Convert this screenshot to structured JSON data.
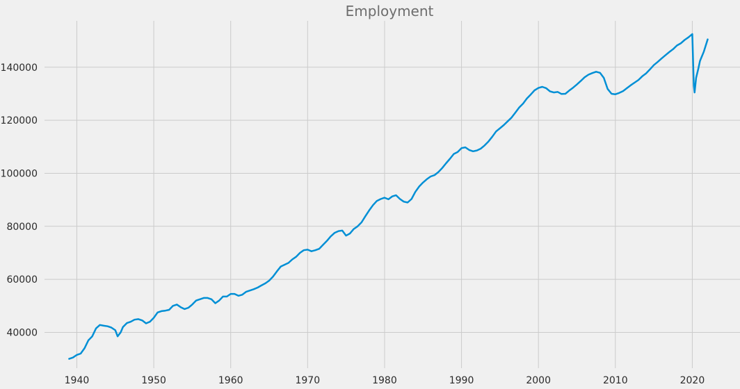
{
  "chart_data": {
    "type": "line",
    "title": "Employment",
    "xlabel": "",
    "ylabel": "",
    "xlim": [
      1935.8,
      2026.2
    ],
    "ylim": [
      26500,
      157500
    ],
    "grid": true,
    "legend": "none",
    "x_ticks": [
      1940,
      1950,
      1960,
      1970,
      1980,
      1990,
      2000,
      2010,
      2020
    ],
    "y_ticks": [
      40000,
      60000,
      80000,
      100000,
      120000,
      140000
    ],
    "colors": {
      "background": "#f0f0f0",
      "grid": "#cbcbcb",
      "line": "#008fd5",
      "title": "#6d6d6d",
      "tick": "#2a2a2a"
    },
    "series": [
      {
        "x": [
          1939.0,
          1939.5,
          1940.0,
          1940.5,
          1941.0,
          1941.5,
          1942.0,
          1942.5,
          1943.0,
          1943.5,
          1944.0,
          1944.5,
          1945.0,
          1945.3,
          1945.7,
          1946.0,
          1946.5,
          1947.0,
          1947.5,
          1948.0,
          1948.5,
          1949.0,
          1949.5,
          1950.0,
          1950.5,
          1951.0,
          1951.5,
          1952.0,
          1952.5,
          1953.0,
          1953.5,
          1954.0,
          1954.5,
          1955.0,
          1955.5,
          1956.0,
          1956.5,
          1957.0,
          1957.5,
          1958.0,
          1958.5,
          1959.0,
          1959.5,
          1960.0,
          1960.5,
          1961.0,
          1961.5,
          1962.0,
          1962.5,
          1963.0,
          1963.5,
          1964.0,
          1964.5,
          1965.0,
          1965.5,
          1966.0,
          1966.5,
          1967.0,
          1967.5,
          1968.0,
          1968.5,
          1969.0,
          1969.5,
          1970.0,
          1970.5,
          1971.0,
          1971.5,
          1972.0,
          1972.5,
          1973.0,
          1973.5,
          1974.0,
          1974.5,
          1975.0,
          1975.5,
          1976.0,
          1976.5,
          1977.0,
          1977.5,
          1978.0,
          1978.5,
          1979.0,
          1979.5,
          1980.0,
          1980.5,
          1981.0,
          1981.5,
          1982.0,
          1982.5,
          1983.0,
          1983.5,
          1984.0,
          1984.5,
          1985.0,
          1985.5,
          1986.0,
          1986.5,
          1987.0,
          1987.5,
          1988.0,
          1988.5,
          1989.0,
          1989.5,
          1990.0,
          1990.5,
          1991.0,
          1991.5,
          1992.0,
          1992.5,
          1993.0,
          1993.5,
          1994.0,
          1994.5,
          1995.0,
          1995.5,
          1996.0,
          1996.5,
          1997.0,
          1997.5,
          1998.0,
          1998.5,
          1999.0,
          1999.5,
          2000.0,
          2000.5,
          2001.0,
          2001.5,
          2002.0,
          2002.5,
          2003.0,
          2003.5,
          2004.0,
          2004.5,
          2005.0,
          2005.5,
          2006.0,
          2006.5,
          2007.0,
          2007.5,
          2008.0,
          2008.5,
          2009.0,
          2009.5,
          2010.0,
          2010.5,
          2011.0,
          2011.5,
          2012.0,
          2012.5,
          2013.0,
          2013.5,
          2014.0,
          2014.5,
          2015.0,
          2015.5,
          2016.0,
          2016.5,
          2017.0,
          2017.5,
          2018.0,
          2018.5,
          2019.0,
          2019.5,
          2020.0,
          2020.2,
          2020.3,
          2020.5,
          2020.8,
          2021.0,
          2021.5,
          2022.0
        ],
        "y": [
          30000,
          30500,
          31500,
          32000,
          34000,
          37000,
          38500,
          41500,
          42800,
          42500,
          42300,
          41800,
          40800,
          38500,
          40000,
          42000,
          43500,
          44000,
          44800,
          45000,
          44500,
          43400,
          44000,
          45500,
          47500,
          48000,
          48200,
          48500,
          50000,
          50500,
          49500,
          48800,
          49300,
          50500,
          52000,
          52500,
          53000,
          53000,
          52500,
          51000,
          52000,
          53500,
          53500,
          54500,
          54500,
          53800,
          54200,
          55300,
          55800,
          56300,
          56900,
          57700,
          58500,
          59500,
          61000,
          63000,
          64800,
          65500,
          66200,
          67500,
          68500,
          70000,
          71000,
          71200,
          70600,
          71000,
          71500,
          73000,
          74500,
          76200,
          77500,
          78200,
          78400,
          76500,
          77300,
          79000,
          80000,
          81500,
          83800,
          86000,
          88000,
          89600,
          90300,
          90800,
          90200,
          91300,
          91700,
          90300,
          89300,
          89000,
          90300,
          93000,
          95000,
          96500,
          97800,
          98800,
          99300,
          100500,
          102000,
          103800,
          105500,
          107300,
          108000,
          109500,
          109800,
          108800,
          108300,
          108600,
          109300,
          110500,
          112000,
          113800,
          115800,
          117000,
          118200,
          119600,
          121000,
          122900,
          124800,
          126300,
          128200,
          129700,
          131300,
          132200,
          132600,
          132100,
          130900,
          130500,
          130700,
          129900,
          130000,
          131200,
          132300,
          133500,
          134800,
          136200,
          137200,
          137800,
          138300,
          137900,
          136000,
          131800,
          130000,
          129800,
          130300,
          131000,
          132100,
          133200,
          134200,
          135200,
          136600,
          137700,
          139200,
          140800,
          142000,
          143300,
          144500,
          145700,
          146800,
          148200,
          149000,
          150300,
          151300,
          152500,
          133000,
          130500,
          136000,
          139700,
          142400,
          145900,
          150500
        ]
      }
    ]
  }
}
